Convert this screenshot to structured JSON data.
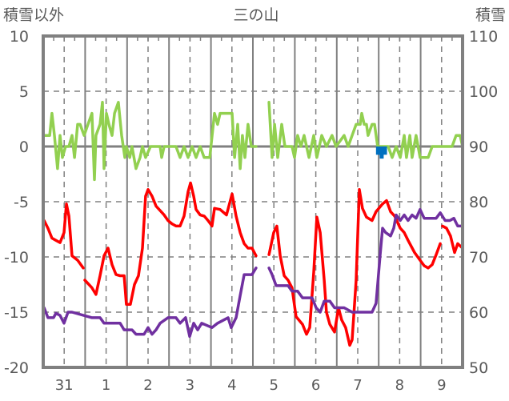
{
  "chart_data": {
    "type": "line",
    "title": "三の山",
    "ylabel_left": "積雪以外",
    "ylabel_right": "積雪",
    "x_unit": "hours from start of day 31",
    "xlim": [
      0,
      240
    ],
    "ylim_left": [
      -20,
      10
    ],
    "ylim_right": [
      50,
      110
    ],
    "yticks_left": [
      10,
      5,
      0,
      -5,
      -10,
      -15,
      -20
    ],
    "yticks_right": [
      110,
      100,
      90,
      80,
      70,
      60,
      50
    ],
    "xtick_labels": [
      "31",
      "1",
      "2",
      "3",
      "4",
      "5",
      "6",
      "7",
      "8",
      "9"
    ],
    "grid": true,
    "series": [
      {
        "name": "green",
        "color": "#92D050",
        "axis": "left",
        "points": [
          [
            0.5,
            1
          ],
          [
            3.7,
            1
          ],
          [
            5,
            3
          ],
          [
            6.4,
            1
          ],
          [
            8.2,
            -2
          ],
          [
            9.6,
            1
          ],
          [
            11,
            -1
          ],
          [
            12.8,
            0
          ],
          [
            14.7,
            0
          ],
          [
            16.5,
            1
          ],
          [
            17.9,
            -1
          ],
          [
            19.7,
            2
          ],
          [
            21.1,
            2
          ],
          [
            23.4,
            1
          ],
          [
            25.6,
            2
          ],
          [
            27.9,
            3
          ],
          [
            29.3,
            -3
          ],
          [
            30.2,
            1
          ],
          [
            32.5,
            2
          ],
          [
            33.9,
            4
          ],
          [
            34.8,
            -2
          ],
          [
            36.2,
            3
          ],
          [
            37.6,
            2
          ],
          [
            39.4,
            1
          ],
          [
            40.8,
            3
          ],
          [
            43,
            4
          ],
          [
            44.9,
            1
          ],
          [
            46.7,
            -1
          ],
          [
            47.6,
            0
          ],
          [
            49.5,
            -1
          ],
          [
            50.8,
            0
          ],
          [
            53.1,
            -2
          ],
          [
            55.4,
            -1
          ],
          [
            56.8,
            0
          ],
          [
            58.6,
            -1
          ],
          [
            61.4,
            0
          ],
          [
            66.9,
            0
          ],
          [
            67.8,
            -1
          ],
          [
            69.2,
            0
          ],
          [
            76,
            0
          ],
          [
            78.3,
            -1
          ],
          [
            80.6,
            0
          ],
          [
            82.9,
            -1
          ],
          [
            85.2,
            0
          ],
          [
            87.5,
            -1
          ],
          [
            89.8,
            0
          ],
          [
            92.1,
            -1
          ],
          [
            95.3,
            -1
          ],
          [
            98,
            3
          ],
          [
            99.8,
            2
          ],
          [
            101.2,
            3
          ],
          [
            108.1,
            3
          ],
          [
            109.5,
            -1
          ],
          [
            111.3,
            2
          ],
          [
            112.7,
            -2
          ],
          [
            114,
            1
          ],
          [
            115.4,
            -1
          ],
          [
            117.2,
            2
          ],
          [
            119.1,
            0
          ],
          [
            121.8,
            0
          ],
          null,
          [
            129.2,
            4
          ],
          [
            131,
            -1
          ],
          [
            132.4,
            2
          ],
          [
            134.2,
            -1
          ],
          [
            136.5,
            2
          ],
          [
            138.3,
            0
          ],
          [
            142.4,
            0
          ],
          [
            143.8,
            -1
          ],
          [
            145.6,
            1
          ],
          [
            147.5,
            0
          ],
          [
            149.3,
            1
          ],
          [
            152.1,
            -1
          ],
          [
            154.8,
            1
          ],
          [
            156.6,
            -1
          ],
          [
            159.4,
            1
          ],
          [
            162.1,
            0
          ],
          [
            165.3,
            1
          ],
          [
            167.6,
            0
          ],
          [
            172.2,
            1
          ],
          [
            174.5,
            0
          ],
          [
            176.8,
            1
          ],
          [
            179.1,
            2
          ],
          [
            181.4,
            2
          ],
          [
            182.3,
            3
          ],
          [
            183.7,
            2
          ],
          [
            185,
            2
          ],
          [
            185.9,
            1
          ],
          [
            188.2,
            2
          ],
          [
            189.6,
            2
          ],
          [
            191.4,
            0
          ],
          [
            194.2,
            0
          ],
          [
            197.4,
            0
          ],
          [
            199.7,
            -1
          ],
          [
            202,
            0
          ],
          [
            204.3,
            -1
          ],
          [
            206.6,
            1
          ],
          [
            207.9,
            -1
          ],
          [
            209.8,
            1
          ],
          [
            211.1,
            -1
          ],
          [
            213.4,
            1
          ],
          [
            215.7,
            -1
          ],
          [
            220.3,
            -1
          ],
          [
            222.6,
            0
          ],
          [
            234,
            0
          ],
          [
            236.3,
            1
          ],
          [
            238.6,
            1
          ],
          [
            240,
            0
          ]
        ]
      },
      {
        "name": "red",
        "color": "#FF0000",
        "axis": "left",
        "points": [
          [
            0.5,
            -6.7
          ],
          [
            2.7,
            -7.4
          ],
          [
            5,
            -8.3
          ],
          [
            7.3,
            -8.5
          ],
          [
            9.6,
            -8.7
          ],
          [
            11.9,
            -7.8
          ],
          [
            13.3,
            -5.2
          ],
          [
            14.7,
            -6.3
          ],
          [
            16.5,
            -9.9
          ],
          [
            19.7,
            -10.3
          ],
          [
            22.9,
            -11
          ],
          null,
          [
            23.8,
            -12.1
          ],
          [
            27.9,
            -12.8
          ],
          [
            30.2,
            -13.4
          ],
          [
            32.5,
            -11.7
          ],
          [
            34.8,
            -9.9
          ],
          [
            37.1,
            -9.2
          ],
          [
            39.4,
            -10.7
          ],
          [
            41.7,
            -11.6
          ],
          [
            44,
            -11.7
          ],
          [
            46.3,
            -11.7
          ],
          [
            47.6,
            -14.3
          ],
          [
            49.9,
            -14.3
          ],
          [
            52.2,
            -12.5
          ],
          [
            54.5,
            -11.7
          ],
          [
            56.8,
            -9.2
          ],
          [
            58.6,
            -4.5
          ],
          [
            60,
            -3.9
          ],
          [
            62.3,
            -4.5
          ],
          [
            64.6,
            -5.4
          ],
          [
            69.2,
            -6.2
          ],
          [
            71.4,
            -6.7
          ],
          [
            73.7,
            -7
          ],
          [
            76,
            -7.2
          ],
          [
            78.3,
            -7.2
          ],
          [
            80.6,
            -6.3
          ],
          [
            82.9,
            -4.1
          ],
          [
            84.3,
            -3.3
          ],
          [
            86.1,
            -4.5
          ],
          [
            87.5,
            -5.7
          ],
          [
            89.8,
            -6.2
          ],
          [
            92.1,
            -6.3
          ],
          [
            94.3,
            -6.7
          ],
          [
            96.6,
            -7.2
          ],
          [
            98,
            -5.6
          ],
          [
            101.2,
            -5.7
          ],
          [
            104.9,
            -6.2
          ],
          [
            108.1,
            -4.3
          ],
          [
            110.4,
            -6.3
          ],
          [
            112.7,
            -7.8
          ],
          [
            115,
            -8.8
          ],
          [
            117.2,
            -9.2
          ],
          [
            119.5,
            -9.2
          ],
          [
            121.8,
            -9.9
          ],
          null,
          [
            129.2,
            -9.8
          ],
          [
            131.9,
            -7.8
          ],
          [
            133.7,
            -7.2
          ],
          [
            135.6,
            -9.9
          ],
          [
            137.9,
            -11.7
          ],
          [
            140.1,
            -12.1
          ],
          [
            142.4,
            -12.8
          ],
          [
            144.7,
            -15.4
          ],
          [
            148.4,
            -16.1
          ],
          [
            150.7,
            -17
          ],
          [
            152.5,
            -16.4
          ],
          [
            154.8,
            -11.4
          ],
          [
            156.6,
            -6.4
          ],
          [
            158.5,
            -7.8
          ],
          [
            160.8,
            -12.1
          ],
          [
            162.1,
            -15
          ],
          [
            164,
            -16.1
          ],
          [
            166.7,
            -16.8
          ],
          [
            169,
            -14.6
          ],
          [
            170.8,
            -15.7
          ],
          [
            173.1,
            -16.4
          ],
          [
            175.4,
            -18
          ],
          [
            176.8,
            -17.5
          ],
          [
            179.1,
            -12.1
          ],
          [
            180.9,
            -3.9
          ],
          [
            182.7,
            -5.6
          ],
          [
            185,
            -6.4
          ],
          [
            188.2,
            -6.7
          ],
          [
            190.5,
            -5.9
          ],
          [
            194.2,
            -5.2
          ],
          [
            196.5,
            -4.9
          ],
          [
            198.8,
            -5.9
          ],
          [
            201.1,
            -6.3
          ],
          [
            204.3,
            -7.4
          ],
          [
            206.6,
            -7.8
          ],
          [
            208.8,
            -8.5
          ],
          [
            212.5,
            -9.6
          ],
          [
            215.7,
            -10.3
          ],
          [
            218,
            -10.8
          ],
          [
            220.3,
            -11
          ],
          [
            222.6,
            -10.7
          ],
          [
            224.9,
            -9.8
          ],
          [
            227.2,
            -8.8
          ],
          null,
          [
            228.5,
            -7.2
          ],
          [
            230.8,
            -7.4
          ],
          [
            233.1,
            -8.1
          ],
          [
            235.4,
            -9.6
          ],
          [
            237.2,
            -8.8
          ],
          [
            240,
            -9.2
          ]
        ]
      },
      {
        "name": "purple",
        "color": "#7030A0",
        "axis": "left",
        "points": [
          [
            0.5,
            -14.6
          ],
          [
            2.7,
            -15.5
          ],
          [
            5.9,
            -15.5
          ],
          [
            7.3,
            -15.1
          ],
          [
            9.6,
            -15.3
          ],
          [
            11.9,
            -16
          ],
          [
            14.2,
            -15
          ],
          [
            16.5,
            -15
          ],
          [
            27.9,
            -15.5
          ],
          [
            32.5,
            -15.5
          ],
          [
            34.8,
            -16
          ],
          [
            44,
            -16
          ],
          [
            46.3,
            -16.6
          ],
          [
            50.8,
            -16.6
          ],
          [
            53.1,
            -17
          ],
          [
            57.7,
            -17
          ],
          [
            60,
            -16.4
          ],
          [
            62.3,
            -17
          ],
          [
            64.6,
            -16.6
          ],
          [
            66.9,
            -16
          ],
          [
            71.4,
            -15.5
          ],
          [
            76,
            -15.5
          ],
          [
            78.3,
            -16
          ],
          [
            81.5,
            -15.5
          ],
          [
            83.8,
            -17.2
          ],
          [
            86.1,
            -16
          ],
          [
            88.4,
            -16.6
          ],
          [
            90.7,
            -16
          ],
          [
            96.6,
            -16.4
          ],
          [
            99.8,
            -16
          ],
          [
            105.8,
            -15.5
          ],
          [
            107.6,
            -16.4
          ],
          [
            110.4,
            -15.5
          ],
          [
            112.7,
            -13.5
          ],
          [
            115,
            -11.6
          ],
          [
            119.5,
            -11.6
          ],
          [
            121.8,
            -11
          ],
          null,
          [
            129.2,
            -11
          ],
          [
            131,
            -11.6
          ],
          [
            133.3,
            -12.6
          ],
          [
            140.1,
            -12.6
          ],
          [
            142.4,
            -13.1
          ],
          [
            145.6,
            -13.1
          ],
          [
            148.4,
            -13.7
          ],
          [
            153.9,
            -13.7
          ],
          [
            156.2,
            -14.6
          ],
          [
            158.5,
            -15
          ],
          [
            160.8,
            -14
          ],
          [
            164,
            -14
          ],
          [
            166.7,
            -14.6
          ],
          [
            172.2,
            -14.6
          ],
          [
            176.8,
            -15
          ],
          [
            188.2,
            -15
          ],
          [
            190.5,
            -14.2
          ],
          [
            192.8,
            -9.9
          ],
          [
            194.2,
            -7.4
          ],
          [
            196,
            -7.8
          ],
          [
            198.8,
            -8.1
          ],
          [
            200.6,
            -7.4
          ],
          [
            202,
            -6.2
          ],
          [
            204.3,
            -6.7
          ],
          [
            206.6,
            -6.2
          ],
          [
            208.8,
            -6.7
          ],
          [
            211.1,
            -6.2
          ],
          [
            213.4,
            -6.5
          ],
          [
            215.7,
            -5.7
          ],
          [
            218,
            -6.5
          ],
          [
            224.9,
            -6.5
          ],
          [
            227.2,
            -6
          ],
          [
            230,
            -6.7
          ],
          [
            232.7,
            -6.7
          ],
          [
            235,
            -6.5
          ],
          [
            237.2,
            -7.2
          ],
          [
            240,
            -7.2
          ]
        ]
      },
      {
        "name": "snow",
        "color": "#0070C0",
        "axis": "right",
        "type": "bar",
        "points": [
          [
            191.6,
            88.5
          ],
          [
            192.6,
            88.5
          ],
          [
            193.7,
            87.8
          ],
          [
            195.6,
            88.5
          ]
        ]
      }
    ]
  }
}
